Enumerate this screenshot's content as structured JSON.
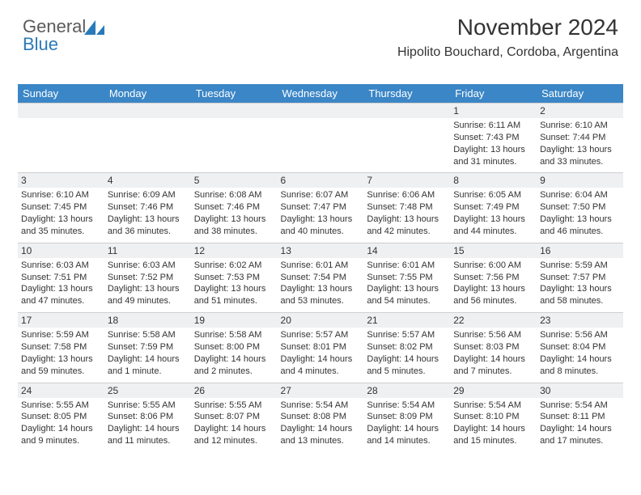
{
  "brand": {
    "part1": "General",
    "part2": "Blue"
  },
  "header": {
    "month_title": "November 2024",
    "location": "Hipolito Bouchard, Cordoba, Argentina"
  },
  "colors": {
    "header_bg": "#3b86c6",
    "header_text": "#ffffff",
    "daynum_bg": "#eef0f2",
    "border": "#cfcfcf",
    "logo_gray": "#5a5a5a",
    "logo_blue": "#2a7ab9"
  },
  "weekdays": [
    "Sunday",
    "Monday",
    "Tuesday",
    "Wednesday",
    "Thursday",
    "Friday",
    "Saturday"
  ],
  "weeks": [
    {
      "nums": [
        "",
        "",
        "",
        "",
        "",
        "1",
        "2"
      ],
      "cells": [
        {},
        {},
        {},
        {},
        {},
        {
          "sunrise": "Sunrise: 6:11 AM",
          "sunset": "Sunset: 7:43 PM",
          "daylight1": "Daylight: 13 hours",
          "daylight2": "and 31 minutes."
        },
        {
          "sunrise": "Sunrise: 6:10 AM",
          "sunset": "Sunset: 7:44 PM",
          "daylight1": "Daylight: 13 hours",
          "daylight2": "and 33 minutes."
        }
      ]
    },
    {
      "nums": [
        "3",
        "4",
        "5",
        "6",
        "7",
        "8",
        "9"
      ],
      "cells": [
        {
          "sunrise": "Sunrise: 6:10 AM",
          "sunset": "Sunset: 7:45 PM",
          "daylight1": "Daylight: 13 hours",
          "daylight2": "and 35 minutes."
        },
        {
          "sunrise": "Sunrise: 6:09 AM",
          "sunset": "Sunset: 7:46 PM",
          "daylight1": "Daylight: 13 hours",
          "daylight2": "and 36 minutes."
        },
        {
          "sunrise": "Sunrise: 6:08 AM",
          "sunset": "Sunset: 7:46 PM",
          "daylight1": "Daylight: 13 hours",
          "daylight2": "and 38 minutes."
        },
        {
          "sunrise": "Sunrise: 6:07 AM",
          "sunset": "Sunset: 7:47 PM",
          "daylight1": "Daylight: 13 hours",
          "daylight2": "and 40 minutes."
        },
        {
          "sunrise": "Sunrise: 6:06 AM",
          "sunset": "Sunset: 7:48 PM",
          "daylight1": "Daylight: 13 hours",
          "daylight2": "and 42 minutes."
        },
        {
          "sunrise": "Sunrise: 6:05 AM",
          "sunset": "Sunset: 7:49 PM",
          "daylight1": "Daylight: 13 hours",
          "daylight2": "and 44 minutes."
        },
        {
          "sunrise": "Sunrise: 6:04 AM",
          "sunset": "Sunset: 7:50 PM",
          "daylight1": "Daylight: 13 hours",
          "daylight2": "and 46 minutes."
        }
      ]
    },
    {
      "nums": [
        "10",
        "11",
        "12",
        "13",
        "14",
        "15",
        "16"
      ],
      "cells": [
        {
          "sunrise": "Sunrise: 6:03 AM",
          "sunset": "Sunset: 7:51 PM",
          "daylight1": "Daylight: 13 hours",
          "daylight2": "and 47 minutes."
        },
        {
          "sunrise": "Sunrise: 6:03 AM",
          "sunset": "Sunset: 7:52 PM",
          "daylight1": "Daylight: 13 hours",
          "daylight2": "and 49 minutes."
        },
        {
          "sunrise": "Sunrise: 6:02 AM",
          "sunset": "Sunset: 7:53 PM",
          "daylight1": "Daylight: 13 hours",
          "daylight2": "and 51 minutes."
        },
        {
          "sunrise": "Sunrise: 6:01 AM",
          "sunset": "Sunset: 7:54 PM",
          "daylight1": "Daylight: 13 hours",
          "daylight2": "and 53 minutes."
        },
        {
          "sunrise": "Sunrise: 6:01 AM",
          "sunset": "Sunset: 7:55 PM",
          "daylight1": "Daylight: 13 hours",
          "daylight2": "and 54 minutes."
        },
        {
          "sunrise": "Sunrise: 6:00 AM",
          "sunset": "Sunset: 7:56 PM",
          "daylight1": "Daylight: 13 hours",
          "daylight2": "and 56 minutes."
        },
        {
          "sunrise": "Sunrise: 5:59 AM",
          "sunset": "Sunset: 7:57 PM",
          "daylight1": "Daylight: 13 hours",
          "daylight2": "and 58 minutes."
        }
      ]
    },
    {
      "nums": [
        "17",
        "18",
        "19",
        "20",
        "21",
        "22",
        "23"
      ],
      "cells": [
        {
          "sunrise": "Sunrise: 5:59 AM",
          "sunset": "Sunset: 7:58 PM",
          "daylight1": "Daylight: 13 hours",
          "daylight2": "and 59 minutes."
        },
        {
          "sunrise": "Sunrise: 5:58 AM",
          "sunset": "Sunset: 7:59 PM",
          "daylight1": "Daylight: 14 hours",
          "daylight2": "and 1 minute."
        },
        {
          "sunrise": "Sunrise: 5:58 AM",
          "sunset": "Sunset: 8:00 PM",
          "daylight1": "Daylight: 14 hours",
          "daylight2": "and 2 minutes."
        },
        {
          "sunrise": "Sunrise: 5:57 AM",
          "sunset": "Sunset: 8:01 PM",
          "daylight1": "Daylight: 14 hours",
          "daylight2": "and 4 minutes."
        },
        {
          "sunrise": "Sunrise: 5:57 AM",
          "sunset": "Sunset: 8:02 PM",
          "daylight1": "Daylight: 14 hours",
          "daylight2": "and 5 minutes."
        },
        {
          "sunrise": "Sunrise: 5:56 AM",
          "sunset": "Sunset: 8:03 PM",
          "daylight1": "Daylight: 14 hours",
          "daylight2": "and 7 minutes."
        },
        {
          "sunrise": "Sunrise: 5:56 AM",
          "sunset": "Sunset: 8:04 PM",
          "daylight1": "Daylight: 14 hours",
          "daylight2": "and 8 minutes."
        }
      ]
    },
    {
      "nums": [
        "24",
        "25",
        "26",
        "27",
        "28",
        "29",
        "30"
      ],
      "cells": [
        {
          "sunrise": "Sunrise: 5:55 AM",
          "sunset": "Sunset: 8:05 PM",
          "daylight1": "Daylight: 14 hours",
          "daylight2": "and 9 minutes."
        },
        {
          "sunrise": "Sunrise: 5:55 AM",
          "sunset": "Sunset: 8:06 PM",
          "daylight1": "Daylight: 14 hours",
          "daylight2": "and 11 minutes."
        },
        {
          "sunrise": "Sunrise: 5:55 AM",
          "sunset": "Sunset: 8:07 PM",
          "daylight1": "Daylight: 14 hours",
          "daylight2": "and 12 minutes."
        },
        {
          "sunrise": "Sunrise: 5:54 AM",
          "sunset": "Sunset: 8:08 PM",
          "daylight1": "Daylight: 14 hours",
          "daylight2": "and 13 minutes."
        },
        {
          "sunrise": "Sunrise: 5:54 AM",
          "sunset": "Sunset: 8:09 PM",
          "daylight1": "Daylight: 14 hours",
          "daylight2": "and 14 minutes."
        },
        {
          "sunrise": "Sunrise: 5:54 AM",
          "sunset": "Sunset: 8:10 PM",
          "daylight1": "Daylight: 14 hours",
          "daylight2": "and 15 minutes."
        },
        {
          "sunrise": "Sunrise: 5:54 AM",
          "sunset": "Sunset: 8:11 PM",
          "daylight1": "Daylight: 14 hours",
          "daylight2": "and 17 minutes."
        }
      ]
    }
  ]
}
